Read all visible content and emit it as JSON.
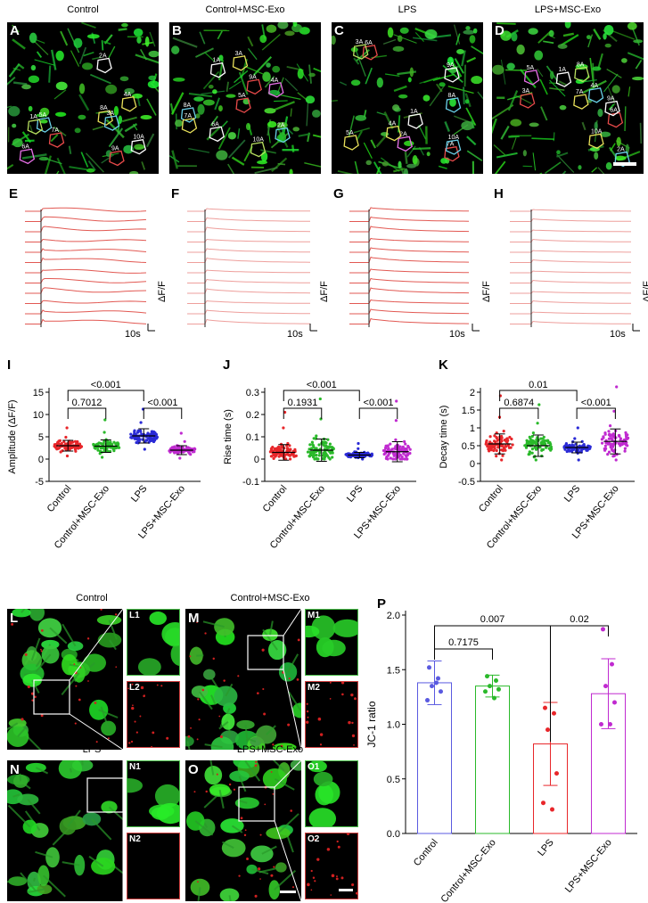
{
  "calcium_images": {
    "panels": [
      {
        "label": "A",
        "title": "Control",
        "color": "#2a7a2a"
      },
      {
        "label": "B",
        "title": "Control+MSC-Exo",
        "color": "#2a7a2a"
      },
      {
        "label": "C",
        "title": "LPS",
        "color": "#2a7a2a"
      },
      {
        "label": "D",
        "title": "LPS+MSC-Exo",
        "color": "#2a7a2a"
      }
    ],
    "roi_labels": {
      "A": [
        "4A",
        "9A",
        "10A",
        "5A",
        "6A",
        "1A",
        "8A",
        "7A",
        "2A",
        "3A"
      ],
      "B": [
        "3A",
        "5A",
        "6A",
        "8A",
        "4A",
        "10A",
        "7A",
        "9A",
        "1A",
        "2A"
      ],
      "C": [
        "5A",
        "6A",
        "1A",
        "8A",
        "2A",
        "3A",
        "4A",
        "7A",
        "9A",
        "10A"
      ],
      "D": [
        "7A",
        "6A",
        "9A",
        "4A",
        "5A",
        "8A",
        "10A",
        "3A",
        "1A",
        "2A"
      ]
    }
  },
  "traces": {
    "panels": [
      "E",
      "F",
      "G",
      "H"
    ],
    "y_label": "ΔF/F",
    "x_label": "10s",
    "line_color": "#e0504a"
  },
  "chart_data": [
    {
      "type": "scatter",
      "panel": "I",
      "ylabel": "Amplitude (ΔF/F)",
      "ylim": [
        -5,
        15
      ],
      "yticks": [
        -5,
        0,
        5,
        10,
        15
      ],
      "categories": [
        "Control",
        "Control+MSC-Exo",
        "LPS",
        "LPS+MSC-Exo"
      ],
      "colors": [
        "#e8262a",
        "#2ab92a",
        "#2a2ad6",
        "#c02ad0"
      ],
      "means": [
        3.0,
        2.9,
        5.2,
        2.0
      ],
      "sd": [
        1.2,
        1.4,
        1.6,
        1.0
      ],
      "ranges": [
        [
          0.7,
          7.0
        ],
        [
          0.4,
          8.8
        ],
        [
          2.2,
          11.2
        ],
        [
          0.2,
          5.8
        ]
      ],
      "comparisons": [
        {
          "from": 0,
          "to": 1,
          "label": "0.7012"
        },
        {
          "from": 0,
          "to": 2,
          "label": "<0.001"
        },
        {
          "from": 2,
          "to": 3,
          "label": "<0.001"
        }
      ]
    },
    {
      "type": "scatter",
      "panel": "J",
      "ylabel": "Rise time (s)",
      "ylim": [
        -0.1,
        0.3
      ],
      "yticks": [
        -0.1,
        0.0,
        0.1,
        0.2,
        0.3
      ],
      "categories": [
        "Control",
        "Control+MSC-Exo",
        "LPS",
        "LPS+MSC-Exo"
      ],
      "colors": [
        "#e8262a",
        "#2ab92a",
        "#2a2ad6",
        "#c02ad0"
      ],
      "means": [
        0.03,
        0.04,
        0.018,
        0.033
      ],
      "sd": [
        0.035,
        0.05,
        0.012,
        0.045
      ],
      "ranges": [
        [
          0.0,
          0.21
        ],
        [
          0.0,
          0.27
        ],
        [
          0.0,
          0.07
        ],
        [
          0.0,
          0.26
        ]
      ],
      "comparisons": [
        {
          "from": 0,
          "to": 1,
          "label": "0.1931"
        },
        {
          "from": 0,
          "to": 2,
          "label": "<0.001"
        },
        {
          "from": 2,
          "to": 3,
          "label": "<0.001"
        }
      ]
    },
    {
      "type": "scatter",
      "panel": "K",
      "ylabel": "Decay time (s)",
      "ylim": [
        -0.5,
        2.0
      ],
      "yticks": [
        -0.5,
        0.0,
        0.5,
        1.0,
        1.5,
        2.0
      ],
      "categories": [
        "Control",
        "Control+MSC-Exo",
        "LPS",
        "LPS+MSC-Exo"
      ],
      "colors": [
        "#e8262a",
        "#2ab92a",
        "#2a2ad6",
        "#c02ad0"
      ],
      "means": [
        0.55,
        0.5,
        0.45,
        0.62
      ],
      "sd": [
        0.28,
        0.3,
        0.15,
        0.35
      ],
      "ranges": [
        [
          0.1,
          1.9
        ],
        [
          0.1,
          1.65
        ],
        [
          0.1,
          1.0
        ],
        [
          0.1,
          2.15
        ]
      ],
      "comparisons": [
        {
          "from": 0,
          "to": 1,
          "label": "0.6874"
        },
        {
          "from": 0,
          "to": 2,
          "label": "0.01"
        },
        {
          "from": 2,
          "to": 3,
          "label": "<0.001"
        }
      ]
    },
    {
      "type": "bar",
      "panel": "P",
      "ylabel": "JC-1 ratio",
      "ylim": [
        0,
        2.0
      ],
      "yticks": [
        0,
        0.5,
        1.0,
        1.5,
        2.0
      ],
      "categories": [
        "Control",
        "Control+MSC-Exo",
        "LPS",
        "LPS+MSC-Exo"
      ],
      "colors": [
        "#5a5ae0",
        "#2ab92a",
        "#e8262a",
        "#c02ad0"
      ],
      "values": [
        1.38,
        1.35,
        0.82,
        1.28
      ],
      "sd": [
        0.2,
        0.1,
        0.38,
        0.32
      ],
      "points": [
        [
          1.52,
          1.42,
          1.35,
          1.3,
          1.22,
          1.38
        ],
        [
          1.44,
          1.4,
          1.35,
          1.32,
          1.3,
          1.24
        ],
        [
          1.15,
          1.1,
          0.95,
          0.55,
          0.28,
          0.22
        ],
        [
          1.87,
          1.55,
          1.35,
          1.2,
          1.0,
          1.0
        ]
      ],
      "comparisons": [
        {
          "from": 0,
          "to": 1,
          "label": "0.7175"
        },
        {
          "from": 0,
          "to": 2,
          "label": "0.007"
        },
        {
          "from": 2,
          "to": 3,
          "label": "0.02"
        }
      ]
    }
  ],
  "jc1_images": {
    "panels": [
      {
        "label": "L",
        "title": "Control",
        "inset1": "L1",
        "inset2": "L2"
      },
      {
        "label": "M",
        "title": "Control+MSC-Exo",
        "inset1": "M1",
        "inset2": "M2"
      },
      {
        "label": "N",
        "title": "LPS",
        "inset1": "N1",
        "inset2": "N2"
      },
      {
        "label": "O",
        "title": "LPS+MSC-Exo",
        "inset1": "O1",
        "inset2": "O2"
      }
    ]
  }
}
